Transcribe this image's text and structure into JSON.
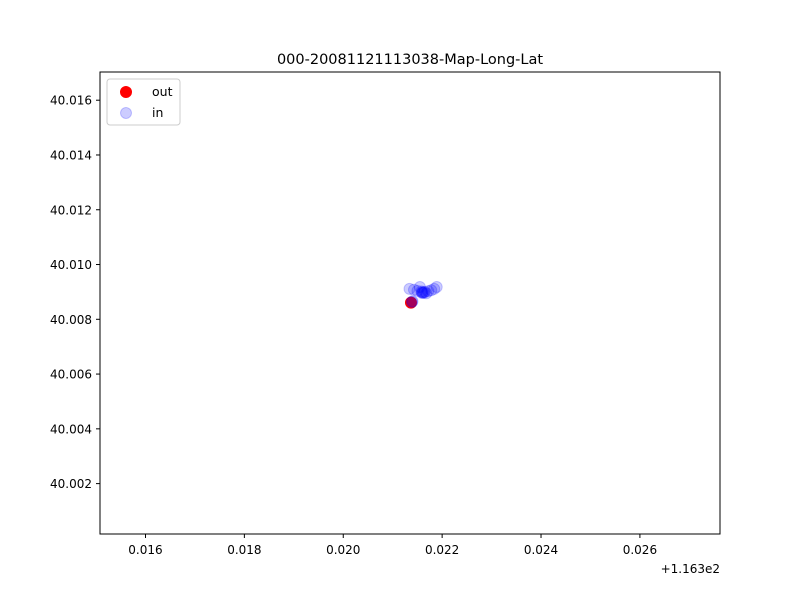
{
  "chart_data": {
    "type": "scatter",
    "title": "000-20081121113038-Map-Long-Lat",
    "xlabel": "",
    "ylabel": "",
    "x_offset_label": "+1.163e2",
    "xlim": [
      116.31508,
      116.32762
    ],
    "ylim": [
      40.00016,
      40.01703
    ],
    "x_ticks": [
      116.316,
      116.318,
      116.32,
      116.322,
      116.324,
      116.326
    ],
    "x_tick_labels": [
      "0.016",
      "0.018",
      "0.020",
      "0.022",
      "0.024",
      "0.026"
    ],
    "y_ticks": [
      40.002,
      40.004,
      40.006,
      40.008,
      40.01,
      40.012,
      40.014,
      40.016
    ],
    "y_tick_labels": [
      "40.002",
      "40.004",
      "40.006",
      "40.008",
      "40.010",
      "40.012",
      "40.014",
      "40.016"
    ],
    "grid": false,
    "legend_position": "upper-left",
    "series": [
      {
        "name": "out",
        "color": "#ff0000",
        "opacity": 1.0,
        "points": [
          [
            116.32137,
            40.00861
          ]
        ]
      },
      {
        "name": "in",
        "color": "#0000ff",
        "opacity": 0.2,
        "points": [
          [
            116.32139,
            40.00863
          ],
          [
            116.3214,
            40.00866
          ],
          [
            116.32134,
            40.00911
          ],
          [
            116.32143,
            40.00908
          ],
          [
            116.3215,
            40.00904
          ],
          [
            116.32155,
            40.00918
          ],
          [
            116.32158,
            40.00902
          ],
          [
            116.32159,
            40.00898
          ],
          [
            116.3216,
            40.00896
          ],
          [
            116.32161,
            40.00899
          ],
          [
            116.32163,
            40.00897
          ],
          [
            116.32165,
            40.009
          ],
          [
            116.32168,
            40.00895
          ],
          [
            116.32172,
            40.00903
          ],
          [
            116.32178,
            40.00906
          ],
          [
            116.32184,
            40.00911
          ],
          [
            116.32189,
            40.00918
          ]
        ]
      }
    ]
  }
}
